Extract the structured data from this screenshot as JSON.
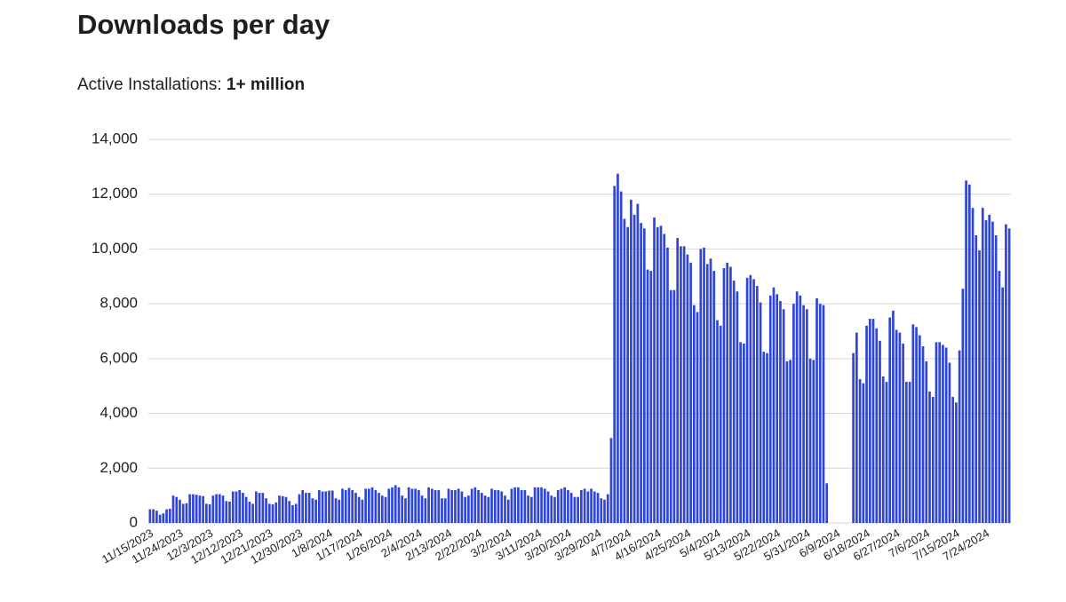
{
  "chart_data": {
    "type": "bar",
    "title": "Downloads per day",
    "subtitle": "Active Installations:",
    "subtitle_value": "1+ million",
    "color": "#2f45d6",
    "grid": true,
    "ylim": [
      0,
      14000
    ],
    "yticks": [
      0,
      {
        "value": 2000,
        "label": "2,000"
      },
      {
        "value": 4000,
        "label": "4,000"
      },
      {
        "value": 6000,
        "label": "6,000"
      },
      {
        "value": 8000,
        "label": "8,000"
      },
      {
        "value": 10000,
        "label": "10,000"
      },
      {
        "value": 12000,
        "label": "12,000"
      },
      {
        "value": 14000,
        "label": "14,000"
      }
    ],
    "categories": [
      "11/15/2023",
      null,
      null,
      null,
      null,
      null,
      null,
      null,
      null,
      "11/24/2023",
      null,
      null,
      null,
      null,
      null,
      null,
      null,
      null,
      "12/3/2023",
      null,
      null,
      null,
      null,
      null,
      null,
      null,
      null,
      "12/12/2023",
      null,
      null,
      null,
      null,
      null,
      null,
      null,
      null,
      "12/21/2023",
      null,
      null,
      null,
      null,
      null,
      null,
      null,
      null,
      "12/30/2023",
      null,
      null,
      null,
      null,
      null,
      null,
      null,
      null,
      "1/8/2024",
      null,
      null,
      null,
      null,
      null,
      null,
      null,
      null,
      "1/17/2024",
      null,
      null,
      null,
      null,
      null,
      null,
      null,
      null,
      "1/26/2024",
      null,
      null,
      null,
      null,
      null,
      null,
      null,
      null,
      "2/4/2024",
      null,
      null,
      null,
      null,
      null,
      null,
      null,
      null,
      "2/13/2024",
      null,
      null,
      null,
      null,
      null,
      null,
      null,
      null,
      "2/22/2024",
      null,
      null,
      null,
      null,
      null,
      null,
      null,
      null,
      "3/2/2024",
      null,
      null,
      null,
      null,
      null,
      null,
      null,
      null,
      "3/11/2024",
      null,
      null,
      null,
      null,
      null,
      null,
      null,
      null,
      "3/20/2024",
      null,
      null,
      null,
      null,
      null,
      null,
      null,
      null,
      "3/29/2024",
      null,
      null,
      null,
      null,
      null,
      null,
      null,
      null,
      "4/7/2024",
      null,
      null,
      null,
      null,
      null,
      null,
      null,
      null,
      "4/16/2024",
      null,
      null,
      null,
      null,
      null,
      null,
      null,
      null,
      "4/25/2024",
      null,
      null,
      null,
      null,
      null,
      null,
      null,
      null,
      "5/4/2024",
      null,
      null,
      null,
      null,
      null,
      null,
      null,
      null,
      "5/13/2024",
      null,
      null,
      null,
      null,
      null,
      null,
      null,
      null,
      "5/22/2024",
      null,
      null,
      null,
      null,
      null,
      null,
      null,
      null,
      "5/31/2024",
      null,
      null,
      null,
      null,
      null,
      null,
      null,
      null,
      "6/9/2024",
      null,
      null,
      null,
      null,
      null,
      null,
      null,
      null,
      "6/18/2024",
      null,
      null,
      null,
      null,
      null,
      null,
      null,
      null,
      "6/27/2024",
      null,
      null,
      null,
      null,
      null,
      null,
      null,
      null,
      "7/6/2024",
      null,
      null,
      null,
      null,
      null,
      null,
      null,
      null,
      "7/15/2024",
      null,
      null,
      null,
      null,
      null,
      null,
      null,
      null,
      "7/24/2024",
      null,
      null,
      null,
      null,
      null,
      null,
      null
    ],
    "values": [
      500,
      500,
      450,
      300,
      350,
      500,
      520,
      1000,
      950,
      850,
      700,
      720,
      1050,
      1050,
      1030,
      1000,
      980,
      700,
      680,
      1000,
      1050,
      1050,
      1000,
      800,
      780,
      1150,
      1150,
      1200,
      1100,
      950,
      780,
      700,
      1150,
      1100,
      1100,
      900,
      700,
      680,
      750,
      1000,
      980,
      950,
      800,
      650,
      700,
      1050,
      1200,
      1100,
      1100,
      900,
      850,
      1200,
      1150,
      1150,
      1180,
      1180,
      900,
      850,
      1250,
      1200,
      1280,
      1200,
      1100,
      950,
      850,
      1250,
      1250,
      1300,
      1200,
      1100,
      1000,
      950,
      1250,
      1300,
      1380,
      1300,
      1000,
      900,
      1300,
      1250,
      1250,
      1200,
      1000,
      900,
      1300,
      1250,
      1200,
      1200,
      900,
      900,
      1250,
      1200,
      1200,
      1250,
      1150,
      950,
      1000,
      1250,
      1300,
      1200,
      1100,
      1000,
      950,
      1250,
      1200,
      1200,
      1150,
      1000,
      850,
      1250,
      1300,
      1300,
      1200,
      1200,
      1000,
      950,
      1300,
      1300,
      1300,
      1250,
      1150,
      1000,
      950,
      1200,
      1250,
      1300,
      1200,
      1100,
      950,
      950,
      1200,
      1250,
      1150,
      1250,
      1150,
      1100,
      900,
      850,
      1050,
      3100,
      12300,
      12750,
      12100,
      11100,
      10800,
      11800,
      11250,
      11650,
      10950,
      10750,
      9250,
      9200,
      11150,
      10800,
      10850,
      10550,
      10050,
      8500,
      8500,
      10400,
      10100,
      10100,
      9800,
      9500,
      7950,
      7700,
      10000,
      10050,
      9450,
      9650,
      9200,
      7400,
      7200,
      9300,
      9500,
      9350,
      8850,
      8450,
      6600,
      6550,
      8950,
      9050,
      8900,
      8650,
      8050,
      6250,
      6200,
      8300,
      8600,
      8350,
      8100,
      7800,
      5900,
      5950,
      8000,
      8450,
      8300,
      7950,
      7800,
      6000,
      5950,
      8200,
      8000,
      7950,
      1450,
      0,
      0,
      0,
      0,
      0,
      0,
      0,
      6200,
      6950,
      5250,
      5100,
      7200,
      7450,
      7450,
      7100,
      6650,
      5350,
      5150,
      7500,
      7750,
      7050,
      6950,
      6550,
      5150,
      5150,
      7250,
      7150,
      6850,
      6450,
      5900,
      4800,
      4600,
      6600,
      6600,
      6500,
      6400,
      5850,
      4600,
      4400,
      6300,
      8550,
      12500,
      12350,
      11500,
      10500,
      9950,
      11500,
      11050,
      11250,
      11000,
      10500,
      9200,
      8600,
      10900,
      10750
    ]
  }
}
